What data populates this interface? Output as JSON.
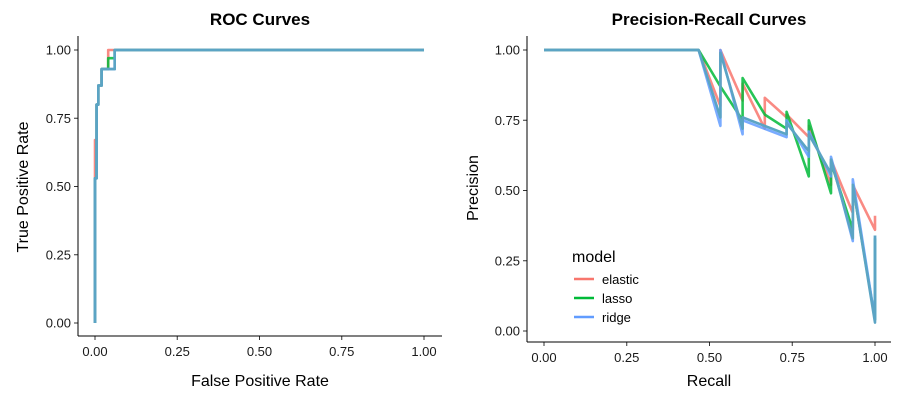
{
  "chart_data": [
    {
      "type": "line",
      "title": "ROC Curves",
      "xlabel": "False Positive Rate",
      "ylabel": "True Positive Rate",
      "xlim": [
        0,
        1
      ],
      "ylim": [
        0,
        1
      ],
      "xticks": [
        "0.00",
        "0.25",
        "0.50",
        "0.75",
        "1.00"
      ],
      "yticks": [
        "0.00",
        "0.25",
        "0.50",
        "0.75",
        "1.00"
      ],
      "grid": false,
      "legend": "none",
      "series": [
        {
          "name": "elastic",
          "color": "#F8766D",
          "x": [
            0.0,
            0.0,
            0.0,
            0.0,
            0.0,
            0.0,
            0.005,
            0.005,
            0.005,
            0.01,
            0.01,
            0.02,
            0.02,
            0.04,
            0.04,
            0.06,
            0.06,
            1.0
          ],
          "y": [
            0.0,
            0.47,
            0.5,
            0.53,
            0.6,
            0.67,
            0.67,
            0.73,
            0.8,
            0.8,
            0.87,
            0.87,
            0.93,
            0.93,
            1.0,
            1.0,
            1.0,
            1.0
          ]
        },
        {
          "name": "lasso",
          "color": "#00BA38",
          "x": [
            0.0,
            0.0,
            0.0,
            0.005,
            0.005,
            0.005,
            0.01,
            0.01,
            0.02,
            0.02,
            0.04,
            0.04,
            0.06,
            0.06,
            1.0
          ],
          "y": [
            0.0,
            0.47,
            0.53,
            0.53,
            0.67,
            0.8,
            0.8,
            0.87,
            0.87,
            0.93,
            0.93,
            0.97,
            0.97,
            1.0,
            1.0
          ]
        },
        {
          "name": "ridge",
          "color": "#619CFF",
          "x": [
            0.0,
            0.0,
            0.0,
            0.005,
            0.005,
            0.005,
            0.01,
            0.01,
            0.02,
            0.02,
            0.06,
            0.06,
            1.0
          ],
          "y": [
            0.0,
            0.47,
            0.53,
            0.53,
            0.73,
            0.8,
            0.8,
            0.87,
            0.87,
            0.93,
            0.93,
            1.0,
            1.0
          ]
        },
        {
          "name": "",
          "color": "#5BA4C4",
          "x": [
            0.0,
            0.0,
            0.0,
            0.005,
            0.005,
            0.005,
            0.01,
            0.01,
            0.02,
            0.02,
            0.06,
            0.06,
            1.0
          ],
          "y": [
            0.0,
            0.47,
            0.53,
            0.53,
            0.73,
            0.8,
            0.8,
            0.87,
            0.87,
            0.93,
            0.93,
            1.0,
            1.0
          ]
        }
      ]
    },
    {
      "type": "line",
      "title": "Precision-Recall Curves",
      "xlabel": "Recall",
      "ylabel": "Precision",
      "xlim": [
        0,
        1
      ],
      "ylim": [
        0,
        1
      ],
      "xticks": [
        "0.00",
        "0.25",
        "0.50",
        "0.75",
        "1.00"
      ],
      "yticks": [
        "0.00",
        "0.25",
        "0.50",
        "0.75",
        "1.00"
      ],
      "grid": false,
      "legend": "bottom-left",
      "legend_title": "model",
      "series": [
        {
          "name": "elastic",
          "color": "#F8766D",
          "x": [
            0.0,
            0.467,
            0.533,
            0.533,
            0.6,
            0.6,
            0.667,
            0.667,
            0.733,
            0.733,
            0.8,
            0.8,
            0.867,
            0.867,
            0.933,
            0.933,
            1.0,
            1.0
          ],
          "y": [
            1.0,
            1.0,
            0.8,
            1.0,
            0.82,
            0.88,
            0.72,
            0.83,
            0.76,
            0.77,
            0.69,
            0.73,
            0.52,
            0.61,
            0.42,
            0.52,
            0.36,
            0.41
          ]
        },
        {
          "name": "lasso",
          "color": "#00BA38",
          "x": [
            0.0,
            0.467,
            0.533,
            0.6,
            0.6,
            0.667,
            0.733,
            0.733,
            0.8,
            0.8,
            0.867,
            0.867,
            0.933,
            0.933,
            1.0,
            1.0
          ],
          "y": [
            1.0,
            1.0,
            0.87,
            0.75,
            0.9,
            0.77,
            0.72,
            0.78,
            0.55,
            0.75,
            0.49,
            0.6,
            0.36,
            0.52,
            0.04,
            0.33
          ]
        },
        {
          "name": "ridge",
          "color": "#619CFF",
          "x": [
            0.0,
            0.467,
            0.533,
            0.533,
            0.6,
            0.6,
            0.733,
            0.733,
            0.8,
            0.8,
            0.867,
            0.867,
            0.933,
            0.933,
            1.0,
            1.0
          ],
          "y": [
            1.0,
            1.0,
            0.73,
            1.0,
            0.7,
            0.75,
            0.69,
            0.75,
            0.62,
            0.71,
            0.55,
            0.62,
            0.32,
            0.54,
            0.04,
            0.34
          ]
        },
        {
          "name": "",
          "color": "#5BA4C4",
          "x": [
            0.0,
            0.467,
            0.533,
            0.533,
            0.6,
            0.6,
            0.733,
            0.733,
            0.8,
            0.8,
            0.867,
            0.867,
            0.933,
            0.933,
            1.0,
            1.0
          ],
          "y": [
            1.0,
            1.0,
            0.76,
            0.99,
            0.72,
            0.76,
            0.7,
            0.74,
            0.64,
            0.7,
            0.56,
            0.61,
            0.33,
            0.52,
            0.03,
            0.34
          ]
        }
      ]
    }
  ]
}
